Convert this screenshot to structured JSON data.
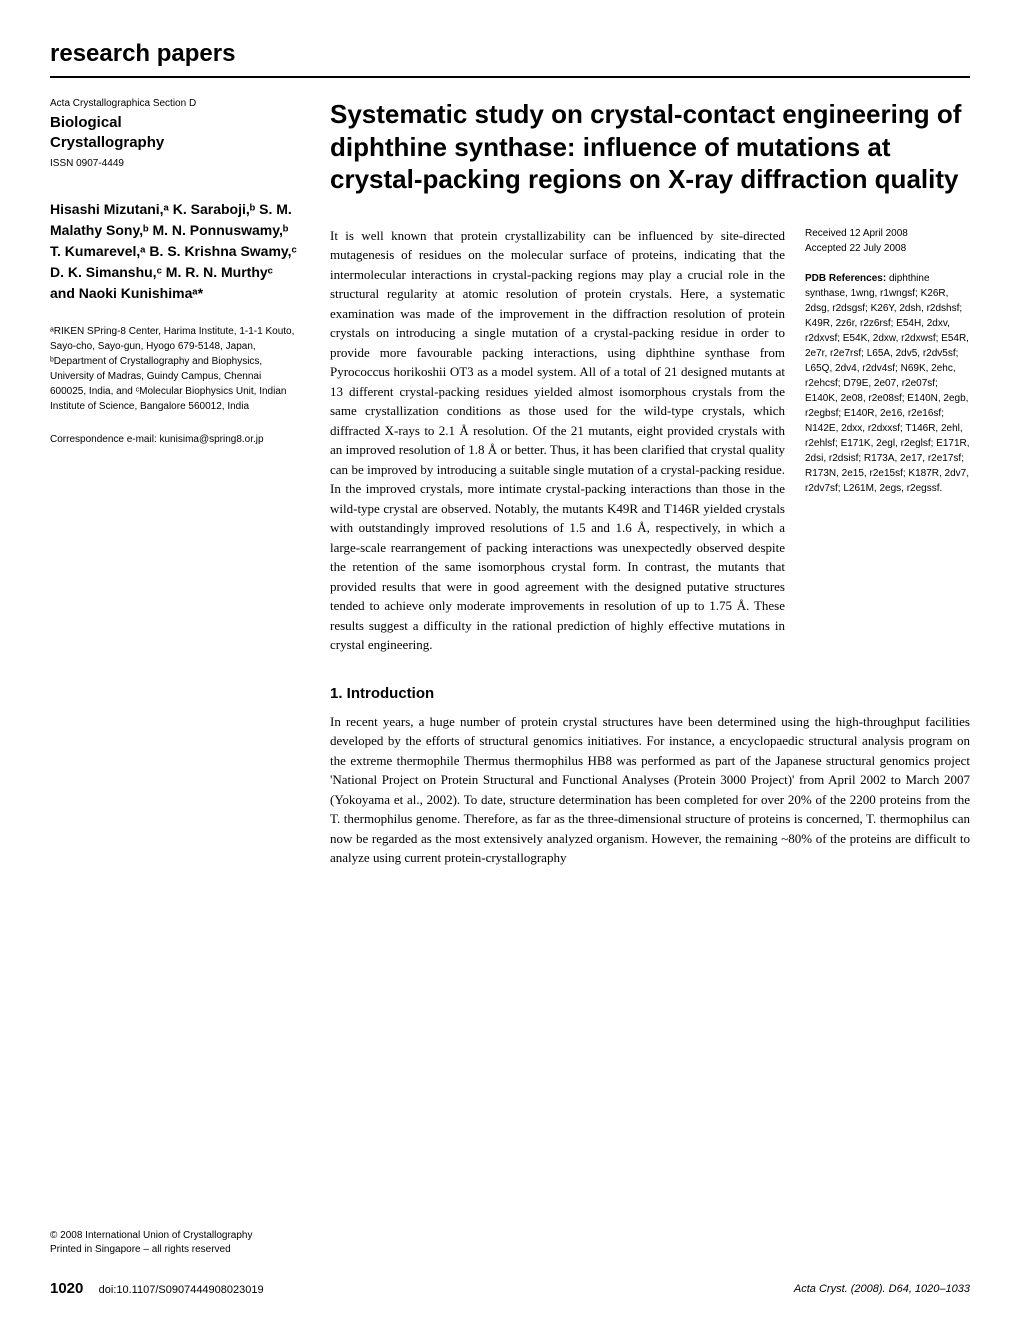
{
  "header": {
    "section_label": "research papers"
  },
  "journal": {
    "series": "Acta Crystallographica Section D",
    "name_line1": "Biological",
    "name_line2": "Crystallography",
    "issn": "ISSN 0907-4449"
  },
  "authors": {
    "list": "Hisashi Mizutani,ᵃ K. Saraboji,ᵇ S. M. Malathy Sony,ᵇ M. N. Ponnuswamy,ᵇ T. Kumarevel,ᵃ B. S. Krishna Swamy,ᶜ D. K. Simanshu,ᶜ M. R. N. Murthyᶜ and Naoki Kunishimaᵃ*"
  },
  "affiliations": {
    "text": "ᵃRIKEN SPring-8 Center, Harima Institute, 1-1-1 Kouto, Sayo-cho, Sayo-gun, Hyogo 679-5148, Japan, ᵇDepartment of Crystallography and Biophysics, University of Madras, Guindy Campus, Chennai 600025, India, and ᶜMolecular Biophysics Unit, Indian Institute of Science, Bangalore 560012, India"
  },
  "correspondence": {
    "text": "Correspondence e-mail: kunisima@spring8.or.jp"
  },
  "copyright": {
    "line1": "© 2008 International Union of Crystallography",
    "line2": "Printed in Singapore – all rights reserved"
  },
  "title": {
    "text": "Systematic study on crystal-contact engineering of diphthine synthase: influence of mutations at crystal-packing regions on X-ray diffraction quality"
  },
  "abstract": {
    "text": "It is well known that protein crystallizability can be influenced by site-directed mutagenesis of residues on the molecular surface of proteins, indicating that the intermolecular interactions in crystal-packing regions may play a crucial role in the structural regularity at atomic resolution of protein crystals. Here, a systematic examination was made of the improvement in the diffraction resolution of protein crystals on introducing a single mutation of a crystal-packing residue in order to provide more favourable packing interactions, using diphthine synthase from Pyrococcus horikoshii OT3 as a model system. All of a total of 21 designed mutants at 13 different crystal-packing residues yielded almost isomorphous crystals from the same crystallization conditions as those used for the wild-type crystals, which diffracted X-rays to 2.1 Å resolution. Of the 21 mutants, eight provided crystals with an improved resolution of 1.8 Å or better. Thus, it has been clarified that crystal quality can be improved by introducing a suitable single mutation of a crystal-packing residue. In the improved crystals, more intimate crystal-packing interactions than those in the wild-type crystal are observed. Notably, the mutants K49R and T146R yielded crystals with outstandingly improved resolutions of 1.5 and 1.6 Å, respectively, in which a large-scale rearrangement of packing interactions was unexpectedly observed despite the retention of the same isomorphous crystal form. In contrast, the mutants that provided results that were in good agreement with the designed putative structures tended to achieve only moderate improvements in resolution of up to 1.75 Å. These results suggest a difficulty in the rational prediction of highly effective mutations in crystal engineering."
  },
  "dates": {
    "received": "Received 12 April 2008",
    "accepted": "Accepted 22 July 2008"
  },
  "pdb": {
    "title": "PDB References:",
    "subject": "diphthine synthase,",
    "refs": "1wng, r1wngsf; K26R, 2dsg, r2dsgsf; K26Y, 2dsh, r2dshsf; K49R, 2z6r, r2z6rsf; E54H, 2dxv, r2dxvsf; E54K, 2dxw, r2dxwsf; E54R, 2e7r, r2e7rsf; L65A, 2dv5, r2dv5sf; L65Q, 2dv4, r2dv4sf; N69K, 2ehc, r2ehcsf; D79E, 2e07, r2e07sf; E140K, 2e08, r2e08sf; E140N, 2egb, r2egbsf; E140R, 2e16, r2e16sf; N142E, 2dxx, r2dxxsf; T146R, 2ehl, r2ehlsf; E171K, 2egl, r2eglsf; E171R, 2dsi, r2dsisf; R173A, 2e17, r2e17sf; R173N, 2e15, r2e15sf; K187R, 2dv7, r2dv7sf; L261M, 2egs, r2egssf."
  },
  "introduction": {
    "heading": "1. Introduction",
    "text": "In recent years, a huge number of protein crystal structures have been determined using the high-throughput facilities developed by the efforts of structural genomics initiatives. For instance, a encyclopaedic structural analysis program on the extreme thermophile Thermus thermophilus HB8 was performed as part of the Japanese structural genomics project 'National Project on Protein Structural and Functional Analyses (Protein 3000 Project)' from April 2002 to March 2007 (Yokoyama et al., 2002). To date, structure determination has been completed for over 20% of the 2200 proteins from the T. thermophilus genome. Therefore, as far as the three-dimensional structure of proteins is concerned, T. thermophilus can now be regarded as the most extensively analyzed organism. However, the remaining ~80% of the proteins are difficult to analyze using current protein-crystallography"
  },
  "footer": {
    "page_number": "1020",
    "doi": "doi:10.1107/S0907444908023019",
    "citation": "Acta Cryst. (2008). D64, 1020–1033"
  }
}
